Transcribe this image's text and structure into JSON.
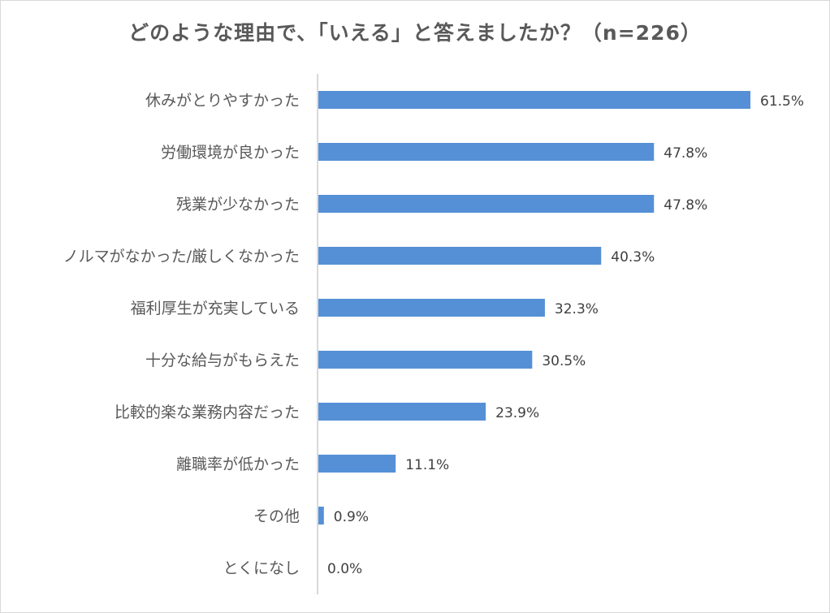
{
  "chart_data": {
    "type": "bar",
    "orientation": "horizontal",
    "title": "どのような理由で、「いえる」と答えましたか？（n=226）",
    "categories": [
      "休みがとりやすかった",
      "労働環境が良かった",
      "残業が少なかった",
      "ノルマがなかった/厳しくなかった",
      "福利厚生が充実している",
      "十分な給与がもらえた",
      "比較的楽な業務内容だった",
      "離職率が低かった",
      "その他",
      "とくになし"
    ],
    "values": [
      61.5,
      47.8,
      47.8,
      40.3,
      32.3,
      30.5,
      23.9,
      11.1,
      0.9,
      0.0
    ],
    "value_labels": [
      "61.5%",
      "47.8%",
      "47.8%",
      "40.3%",
      "32.3%",
      "30.5%",
      "23.9%",
      "11.1%",
      "0.9%",
      "0.0%"
    ],
    "unit": "%",
    "xlim": [
      0,
      70
    ],
    "grid": false,
    "legend": "none",
    "bar_color": "#5590d6"
  }
}
